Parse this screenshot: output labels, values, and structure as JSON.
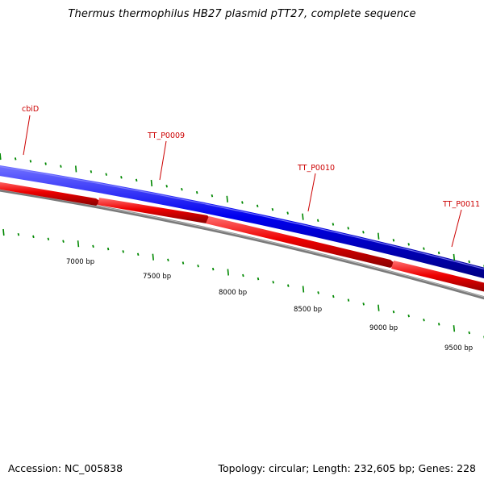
{
  "title": "Thermus thermophilus HB27 plasmid pTT27, complete sequence",
  "footer": {
    "accession": "Accession: NC_005838",
    "summary": "Topology: circular; Length: 232,605 bp; Genes: 228"
  },
  "colors": {
    "forward_strand": "#0000ee",
    "reverse_strand": "#ee0000",
    "backbone": "#808080",
    "ticks": "#008800",
    "gene_label": "#cc0000"
  },
  "genes": [
    {
      "label": "cbiD"
    },
    {
      "label": "TT_P0009"
    },
    {
      "label": "TT_P0010"
    },
    {
      "label": "TT_P0011"
    }
  ],
  "scale_labels": [
    "7000 bp",
    "7500 bp",
    "8000 bp",
    "8500 bp",
    "9000 bp",
    "9500 bp"
  ]
}
